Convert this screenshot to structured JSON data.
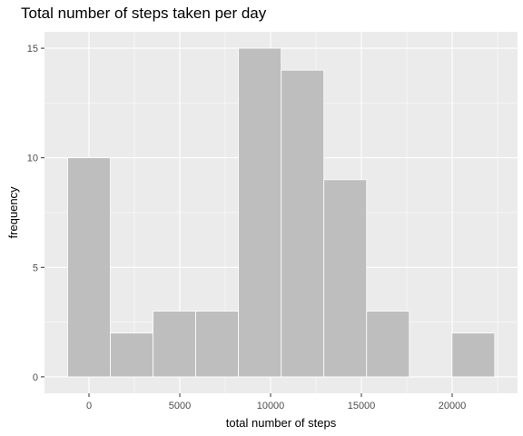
{
  "chart_data": {
    "type": "bar",
    "title": "Total number of steps taken per day",
    "xlabel": "total number of steps",
    "ylabel": "frequency",
    "bin_edges": [
      -1176,
      1176,
      3528,
      5880,
      8232,
      10584,
      12936,
      15288,
      17640,
      19992,
      22344
    ],
    "values": [
      10,
      2,
      3,
      3,
      15,
      14,
      9,
      3,
      0,
      2
    ],
    "xlim": [
      -2450,
      23600
    ],
    "ylim": [
      -0.75,
      15.75
    ],
    "x_ticks": [
      0,
      5000,
      10000,
      15000,
      20000
    ],
    "x_tick_labels": [
      "0",
      "5000",
      "10000",
      "15000",
      "20000"
    ],
    "y_ticks": [
      0,
      5,
      10,
      15
    ],
    "y_tick_labels": [
      "0",
      "5",
      "10",
      "15"
    ],
    "grid": true,
    "colors": {
      "panel_background": "#ebebeb",
      "grid_major": "#ffffff",
      "bar_fill": "#bebebe",
      "bar_outline": "#ffffff",
      "tick_mark": "#333333"
    }
  }
}
